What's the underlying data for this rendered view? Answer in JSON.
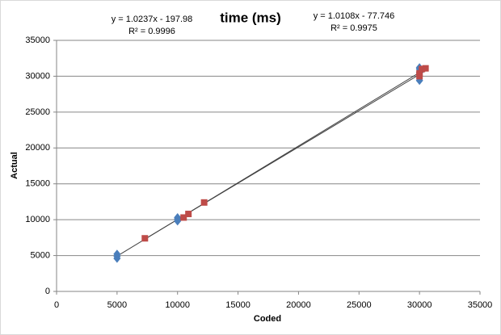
{
  "chart_data": {
    "type": "scatter",
    "title": "time (ms)",
    "x_label": "Coded",
    "y_label": "Actual",
    "xlim": [
      0,
      35000
    ],
    "xticks": [
      0,
      5000,
      10000,
      15000,
      20000,
      25000,
      30000,
      35000
    ],
    "ylim": [
      0,
      35000
    ],
    "yticks": [
      0,
      5000,
      10000,
      15000,
      20000,
      25000,
      30000,
      35000
    ],
    "grid": true,
    "series": [
      {
        "color": "#4a7ebb",
        "marker": "diamond",
        "x": [
          5000,
          5000,
          5000,
          10000,
          10000,
          10000,
          30000,
          30000,
          30000,
          30000
        ],
        "values": [
          4600,
          4900,
          5200,
          9800,
          10100,
          10300,
          29400,
          30500,
          31000,
          31200
        ],
        "trendline": {
          "equation": "y = 1.0237x - 197.98",
          "r2": "R² = 0.9996",
          "slope": 1.0237,
          "intercept": -197.98
        }
      },
      {
        "color": "#be4b48",
        "marker": "square",
        "x": [
          7300,
          10500,
          10900,
          12200,
          30000,
          30000,
          30200,
          30500
        ],
        "values": [
          7400,
          10300,
          10800,
          12400,
          30000,
          30400,
          31000,
          31100
        ],
        "trendline": {
          "equation": "y = 1.0108x - 77.746",
          "r2": "R² = 0.9975",
          "slope": 1.0108,
          "intercept": -77.746
        }
      }
    ]
  }
}
